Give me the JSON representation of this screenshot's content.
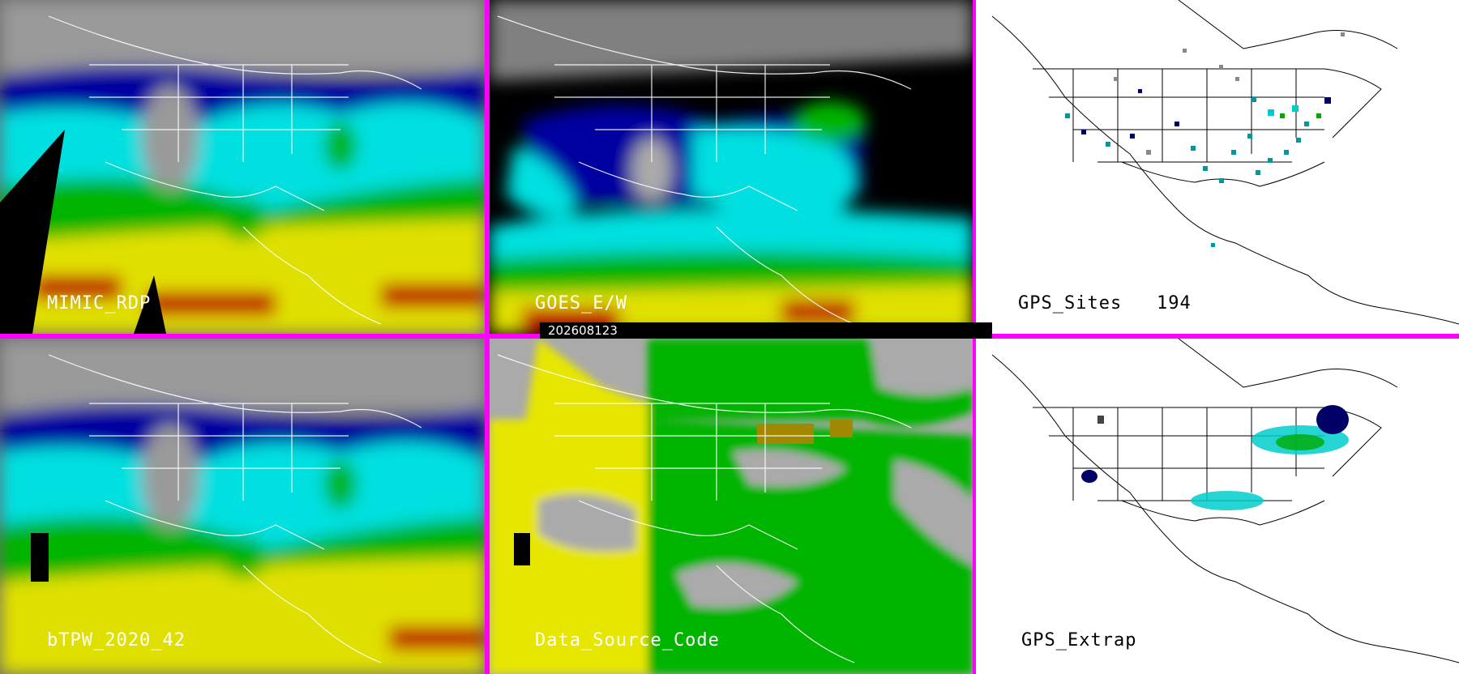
{
  "panels": [
    {
      "id": "mimic",
      "label": "MIMIC_RDP",
      "theme": "dark"
    },
    {
      "id": "goes",
      "label": "GOES_E/W",
      "theme": "dark"
    },
    {
      "id": "gps",
      "label": "GPS_Sites",
      "count": "194",
      "theme": "light"
    },
    {
      "id": "btpw",
      "label": "bTPW_2020_42",
      "theme": "dark"
    },
    {
      "id": "source",
      "label": "Data_Source_Code",
      "theme": "dark"
    },
    {
      "id": "gpsx",
      "label": "GPS_Extrap",
      "theme": "light"
    }
  ],
  "timestamp": "202608123",
  "colors": {
    "border": "#ff00ff",
    "tpw_dry": "#00008b",
    "tpw_low": "#0000ff",
    "tpw_mid": "#00ffff",
    "tpw_green": "#00aa00",
    "tpw_yellow": "#ffff00",
    "tpw_wet": "#cc0000",
    "src_yellow": "#e6e600",
    "src_green": "#00b400",
    "src_gray": "#aaaaaa",
    "src_olive": "#a08800",
    "site_teal": "#009999",
    "site_navy": "#000066",
    "site_gray": "#888888"
  }
}
